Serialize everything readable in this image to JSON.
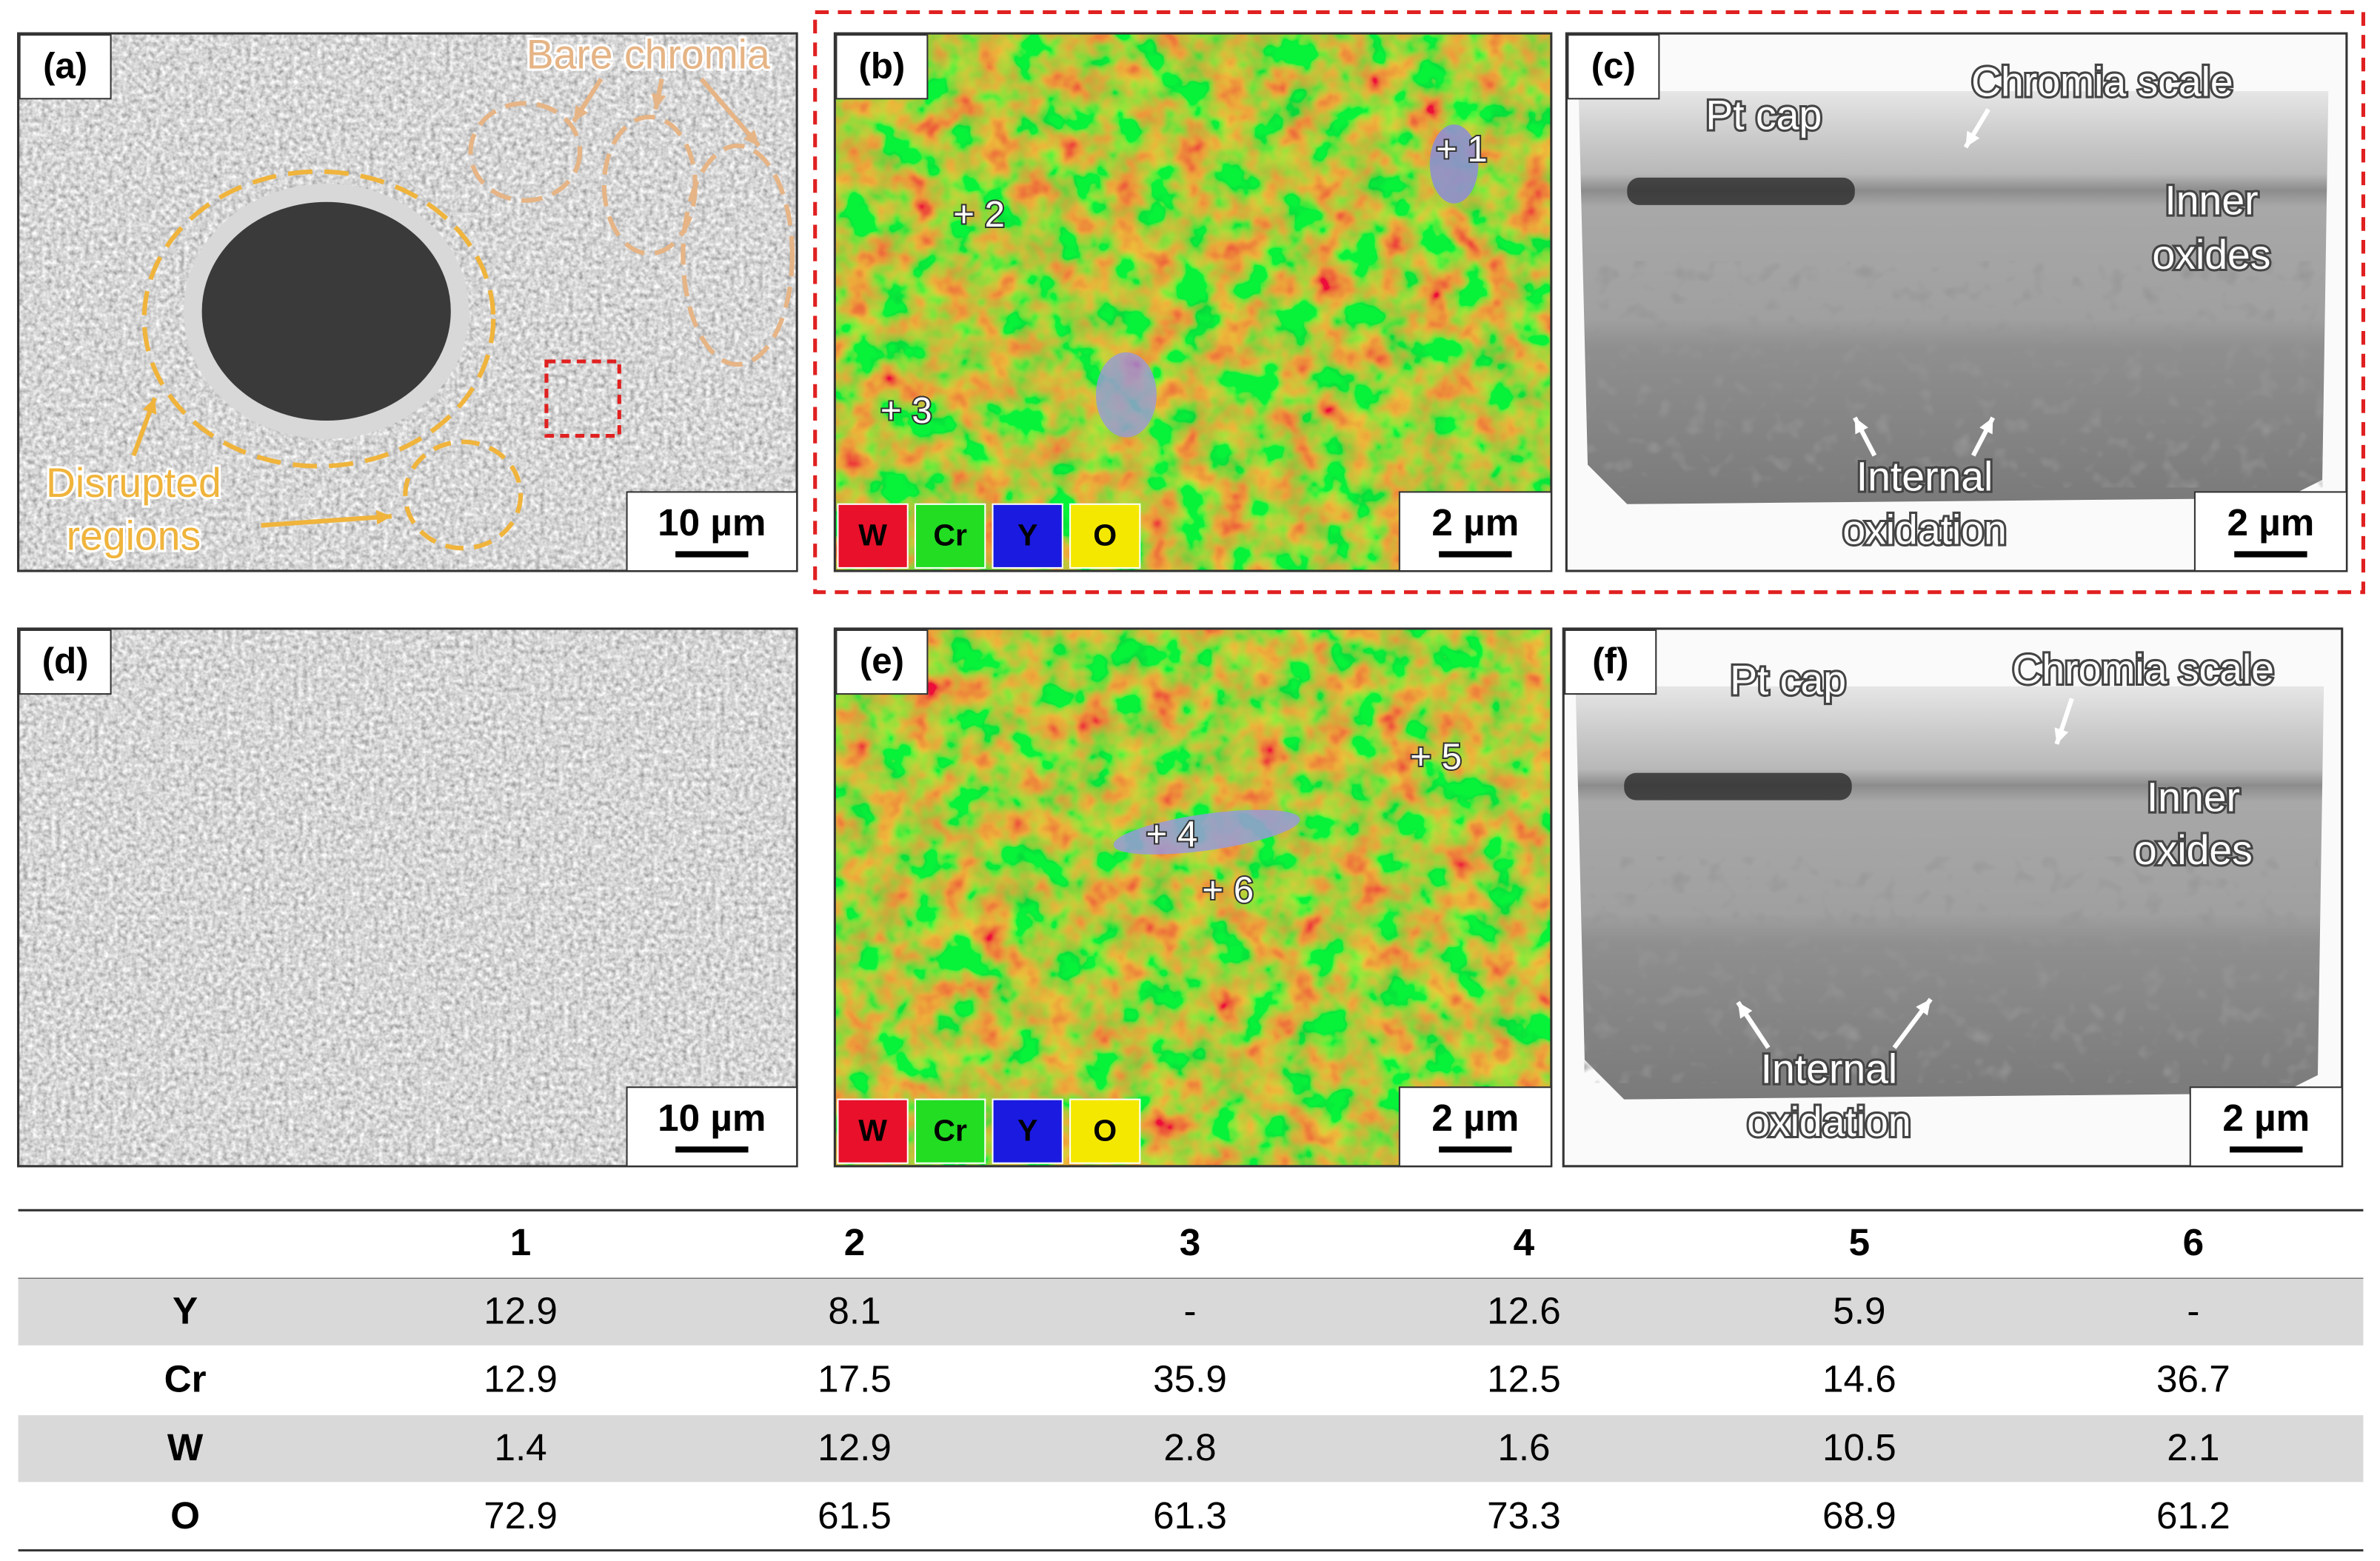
{
  "panels": [
    {
      "label": "(a)",
      "scale_bar": "10 µm",
      "bare_chromia": "Bare chromia",
      "disrupted_regions": [
        "Disrupted",
        "regions"
      ]
    },
    {
      "label": "(b)",
      "scale_bar": "2 µm",
      "points": [
        "+ 1",
        "+ 2",
        "+ 3"
      ],
      "legend": [
        "W",
        "Cr",
        "Y",
        "O"
      ]
    },
    {
      "label": "(c)",
      "scale_bar": "2 µm",
      "pt_cap": "Pt cap",
      "chromia_scale": "Chromia scale",
      "inner_oxides": [
        "Inner",
        "oxides"
      ],
      "internal_oxidation": [
        "Internal",
        "oxidation"
      ]
    },
    {
      "label": "(d)",
      "scale_bar": "10 µm"
    },
    {
      "label": "(e)",
      "scale_bar": "2 µm",
      "points": [
        "+ 4",
        "+ 5",
        "+ 6"
      ],
      "legend": [
        "W",
        "Cr",
        "Y",
        "O"
      ]
    },
    {
      "label": "(f)",
      "scale_bar": "2 µm",
      "pt_cap": "Pt cap",
      "chromia_scale": "Chromia scale",
      "inner_oxides": [
        "Inner",
        "oxides"
      ],
      "internal_oxidation": [
        "Internal",
        "oxidation"
      ]
    }
  ],
  "table": {
    "columns": [
      "1",
      "2",
      "3",
      "4",
      "5",
      "6"
    ],
    "rows": [
      {
        "element": "Y",
        "values": [
          "12.9",
          "8.1",
          "-",
          "12.6",
          "5.9",
          "-"
        ]
      },
      {
        "element": "Cr",
        "values": [
          "12.9",
          "17.5",
          "35.9",
          "12.5",
          "14.6",
          "36.7"
        ]
      },
      {
        "element": "W",
        "values": [
          "1.4",
          "12.9",
          "2.8",
          "1.6",
          "10.5",
          "2.1"
        ]
      },
      {
        "element": "O",
        "values": [
          "72.9",
          "61.5",
          "61.3",
          "73.3",
          "68.9",
          "61.2"
        ]
      }
    ]
  }
}
